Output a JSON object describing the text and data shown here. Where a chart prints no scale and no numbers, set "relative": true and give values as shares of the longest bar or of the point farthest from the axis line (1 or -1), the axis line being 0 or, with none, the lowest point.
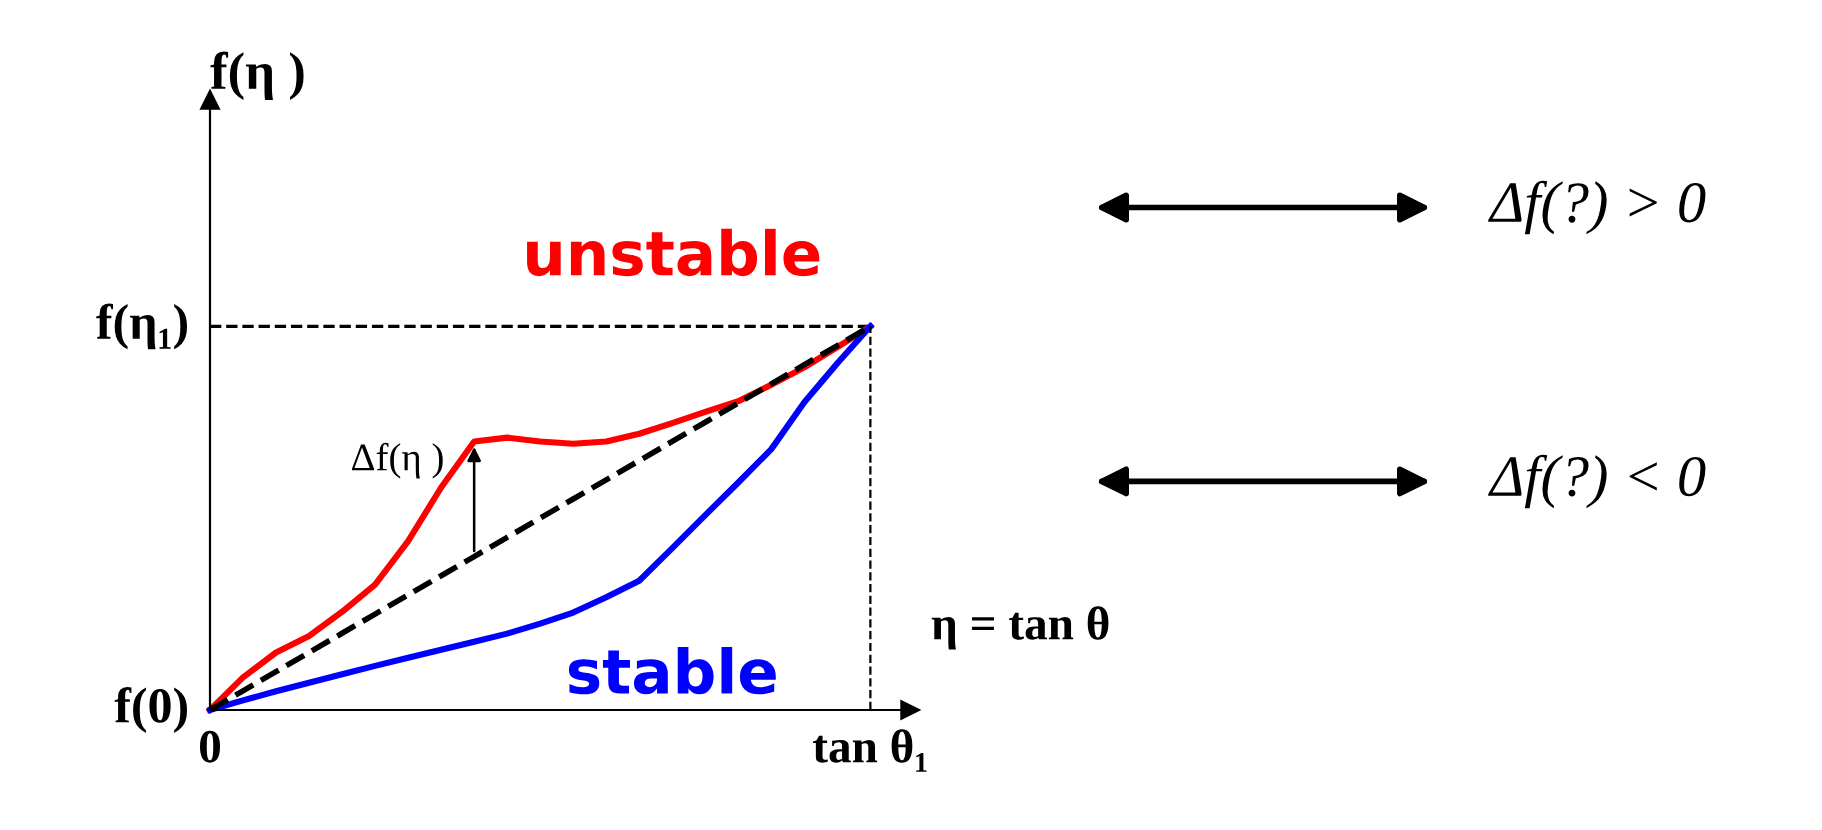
{
  "chart_data": {
    "type": "line",
    "relative": true,
    "xlabel": "η = tan θ",
    "ylabel": "f(η )",
    "categories": [
      "0",
      null,
      null,
      null,
      null,
      null,
      null,
      null,
      null,
      null,
      null,
      null,
      null,
      null,
      null,
      null,
      null,
      null,
      null,
      null,
      "tan θ₁"
    ],
    "series": [
      {
        "name": "unstable",
        "color": "#ff0000",
        "values": [
          0,
          0.085,
          0.15,
          0.193,
          0.256,
          0.327,
          0.44,
          0.58,
          0.7,
          0.71,
          0.7,
          0.694,
          0.7,
          0.72,
          0.748,
          0.777,
          0.805,
          0.848,
          0.893,
          0.946,
          1
        ]
      },
      {
        "name": "stable",
        "color": "#0000ff",
        "values": [
          0,
          0.025,
          0.049,
          0.071,
          0.093,
          0.115,
          0.136,
          0.157,
          0.178,
          0.199,
          0.225,
          0.254,
          0.294,
          0.337,
          0.422,
          0.508,
          0.593,
          0.68,
          0.802,
          0.904,
          1
        ]
      },
      {
        "color": "#000000",
        "line_style": "dashed",
        "values": [
          0,
          0.05,
          0.1,
          0.15,
          0.2,
          0.25,
          0.3,
          0.35,
          0.4,
          0.45,
          0.5,
          0.55,
          0.6,
          0.65,
          0.7,
          0.75,
          0.8,
          0.85,
          0.9,
          0.95,
          1
        ]
      }
    ],
    "ref_lines": [
      {
        "axis": "y",
        "value": 1,
        "line_style": "dashed",
        "color": "#000000"
      },
      {
        "axis": "x",
        "value": "tan θ₁",
        "line_style": "dashed",
        "color": "#000000"
      }
    ],
    "annotations": [
      "Δf(η )",
      "f(0)",
      "f(η₁)",
      "Δf(?) > 0",
      "Δf(?) < 0"
    ],
    "tick_labels": "x",
    "legend": false
  }
}
